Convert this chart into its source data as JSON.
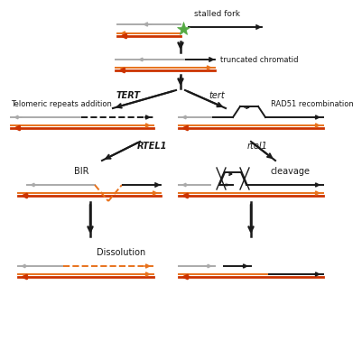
{
  "bg_color": "#ffffff",
  "black": "#1a1a1a",
  "gray": "#aaaaaa",
  "orange": "#e8721c",
  "red": "#cc3300",
  "green": "#55aa44",
  "sections": {
    "stalled_fork_label": "stalled fork",
    "truncated_label": "truncated chromatid",
    "tert_label": "TERT",
    "tert_lower_label": "tert",
    "telomeric_label": "Telomeric repeats addition",
    "rad51_label": "RAD51 recombination",
    "rtel1_label": "RTEL1",
    "rtel1_lower_label": "rtel1",
    "bir_label": "BIR",
    "cleavage_label": "cleavage",
    "dissolution_label": "Dissolution"
  }
}
